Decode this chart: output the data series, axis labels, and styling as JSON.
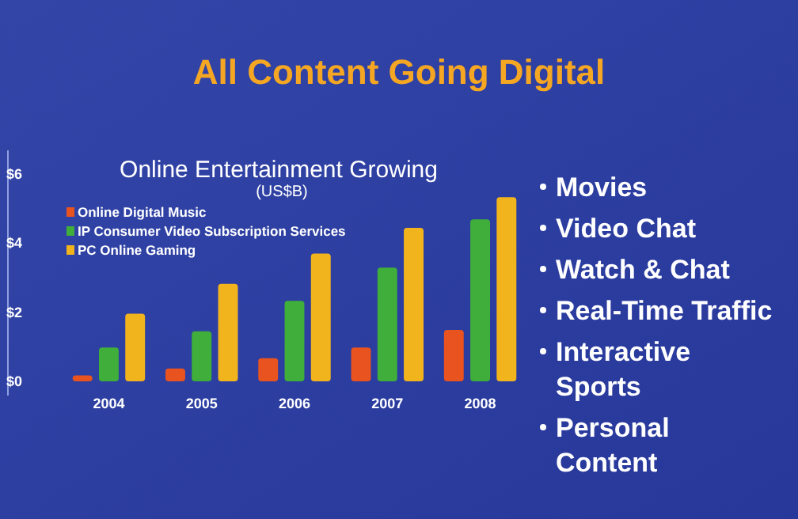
{
  "chart_data": {
    "type": "bar",
    "title": "All Content Going Digital",
    "subtitle": "Online Entertainment Growing",
    "ylabel": "(US$B)",
    "categories": [
      "2004",
      "2005",
      "2006",
      "2007",
      "2008"
    ],
    "series": [
      {
        "name": "Online Digital Music",
        "color": "#e8531f",
        "values": [
          0.17,
          0.37,
          0.67,
          0.98,
          1.49
        ]
      },
      {
        "name": "IP Consumer Video Subscription Services",
        "color": "#3fae3a",
        "values": [
          0.98,
          1.45,
          2.33,
          3.29,
          4.69
        ]
      },
      {
        "name": "PC Online Gaming",
        "color": "#f2b41c",
        "values": [
          1.96,
          2.82,
          3.7,
          4.44,
          5.33
        ]
      }
    ],
    "ylim": [
      0,
      6
    ],
    "yticks": [
      {
        "value": 0,
        "label": "$0"
      },
      {
        "value": 2,
        "label": "$2"
      },
      {
        "value": 4,
        "label": "$4"
      },
      {
        "value": 6,
        "label": "$6"
      }
    ],
    "legend": "top left",
    "annotations": [
      "Movies",
      "Video Chat",
      "Watch & Chat",
      "Real-Time Traffic",
      "Interactive Sports",
      "Personal Content"
    ]
  }
}
